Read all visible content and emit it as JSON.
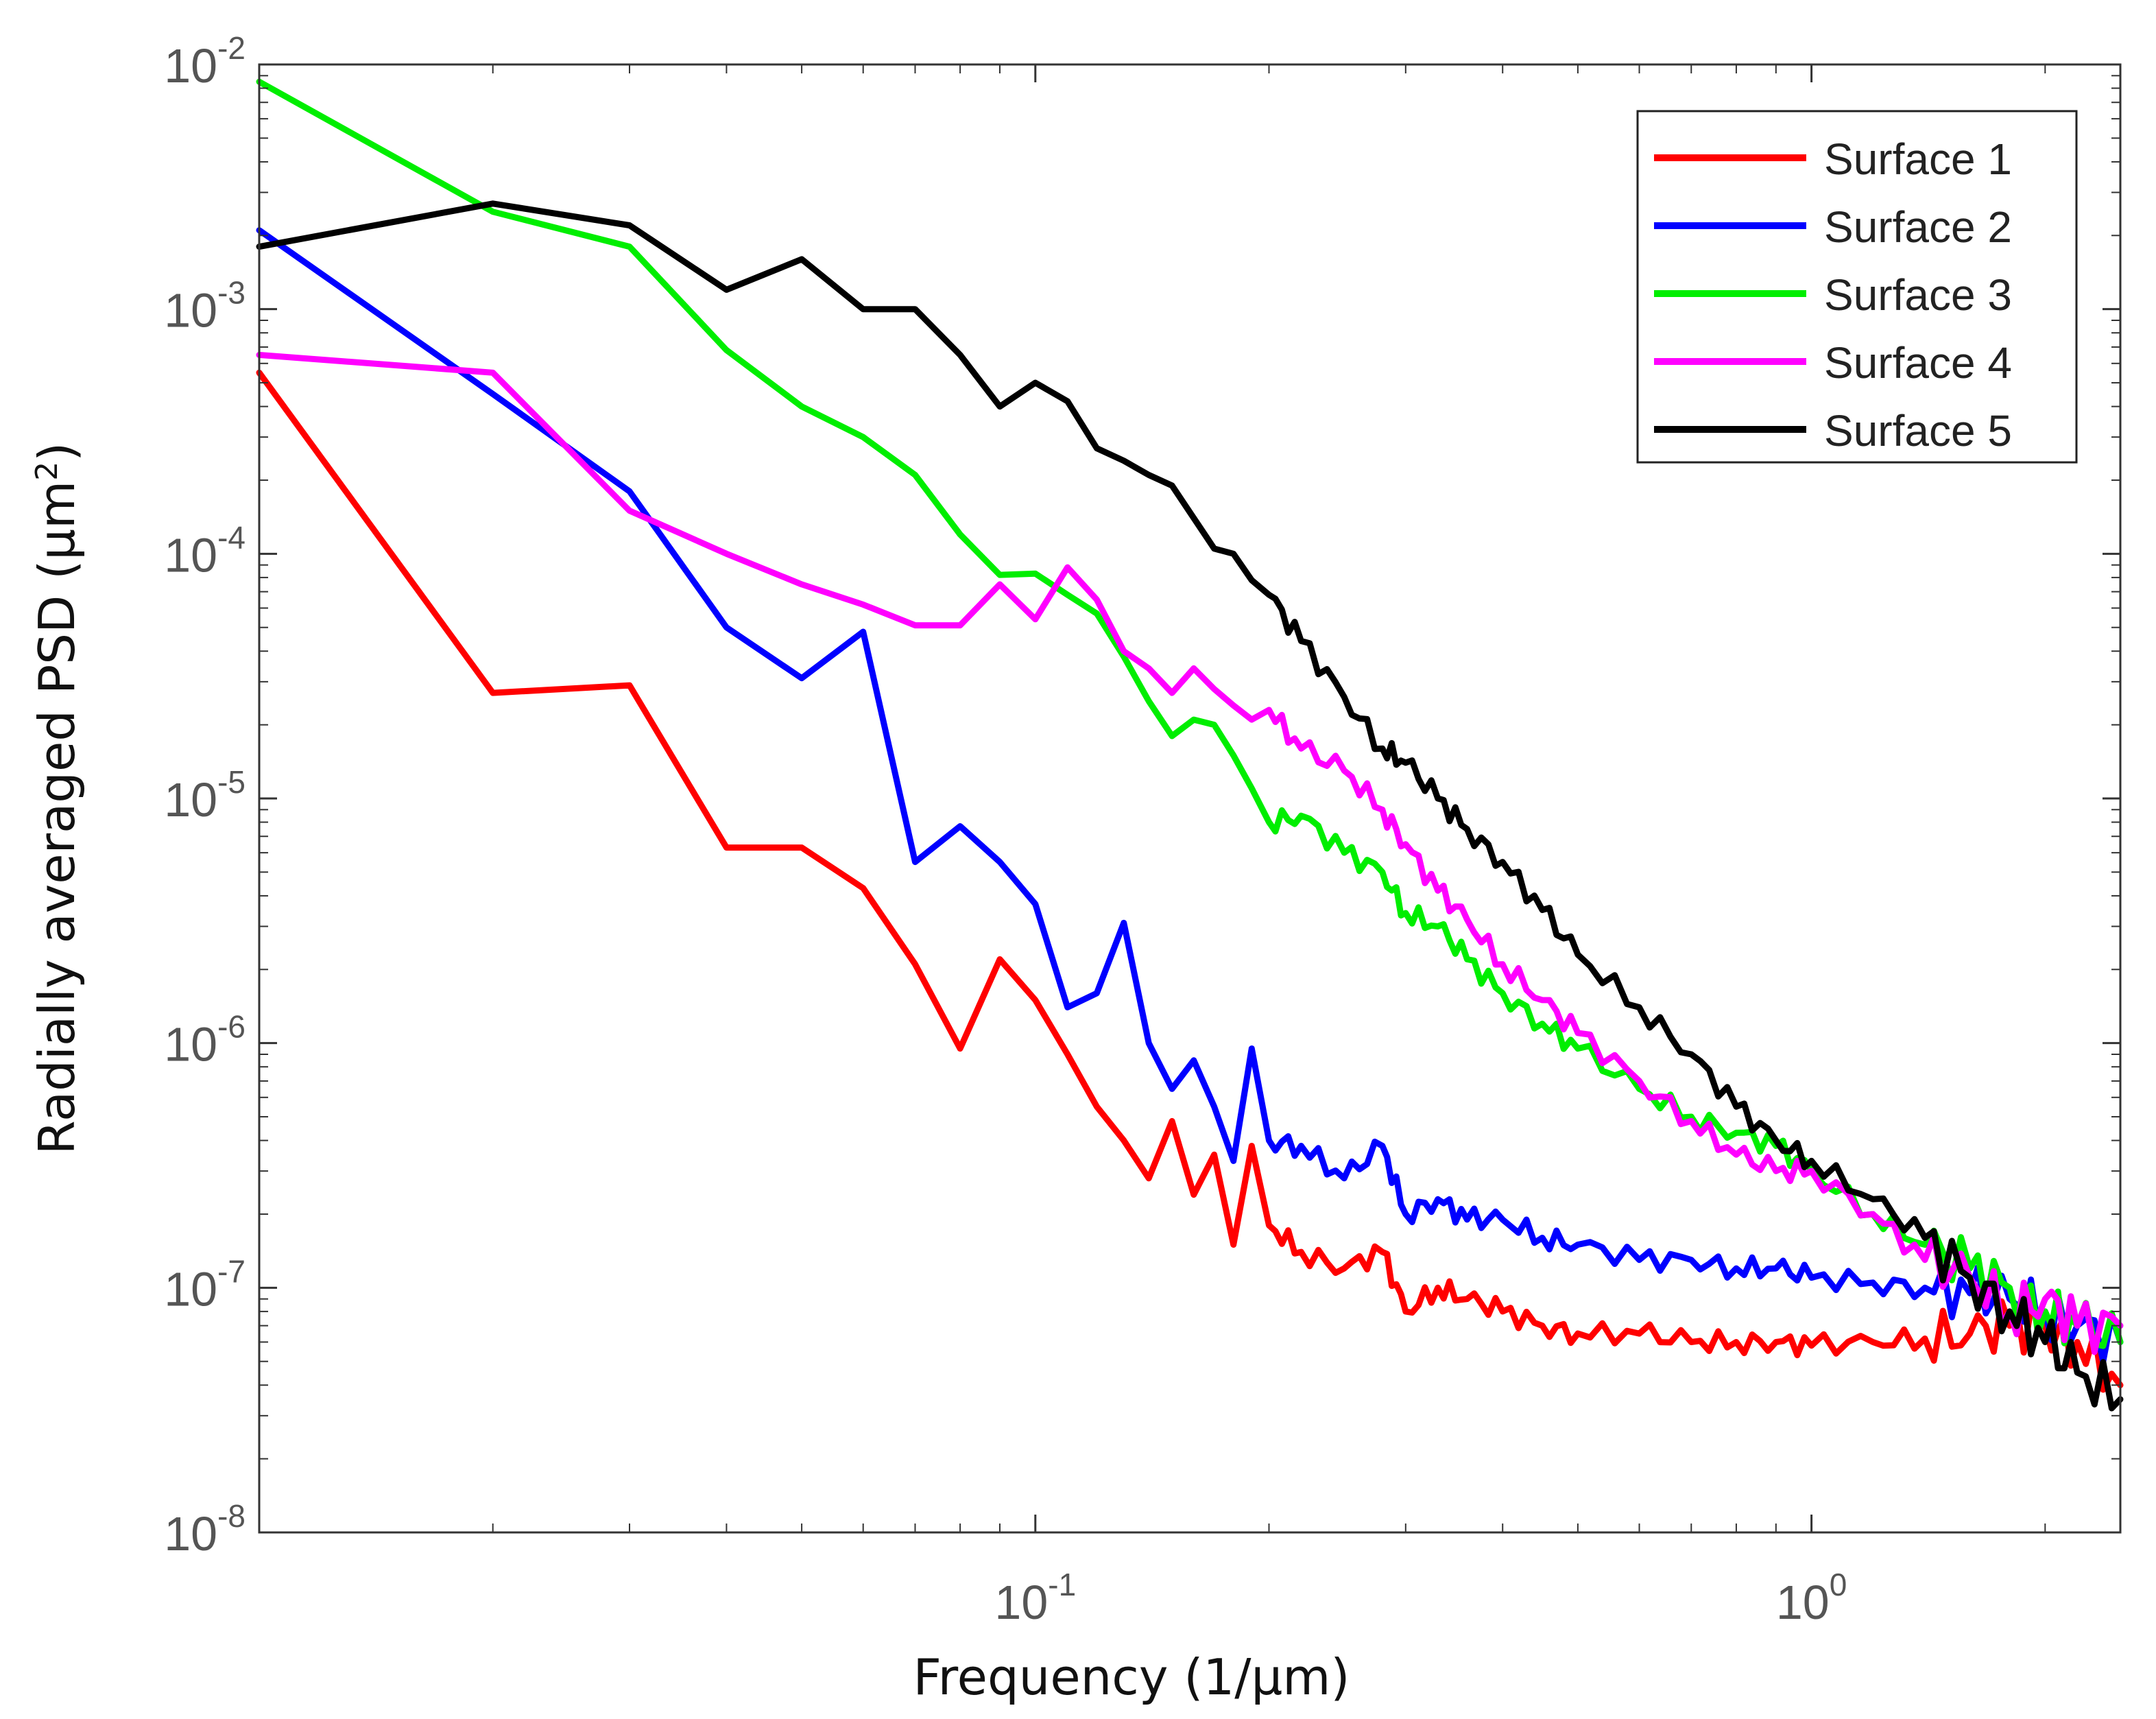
{
  "chart_data": {
    "type": "line",
    "title": "",
    "xlabel": "Frequency (1/μm)",
    "ylabel_main": "Radially averaged PSD (μm",
    "ylabel_sup": "2",
    "ylabel_close": ")",
    "xscale": "log",
    "yscale": "log",
    "xlim": [
      0.01,
      2.5
    ],
    "ylim": [
      1e-08,
      0.01
    ],
    "legend_position": "top-right",
    "x_ticks": [
      {
        "value": 0.1,
        "base": "10",
        "exp": "-1"
      },
      {
        "value": 1,
        "base": "10",
        "exp": "0"
      }
    ],
    "y_ticks": [
      {
        "value": 1e-08,
        "base": "10",
        "exp": "-8"
      },
      {
        "value": 1e-07,
        "base": "10",
        "exp": "-7"
      },
      {
        "value": 1e-06,
        "base": "10",
        "exp": "-6"
      },
      {
        "value": 1e-05,
        "base": "10",
        "exp": "-5"
      },
      {
        "value": 0.0001,
        "base": "10",
        "exp": "-4"
      },
      {
        "value": 0.001,
        "base": "10",
        "exp": "-3"
      },
      {
        "value": 0.01,
        "base": "10",
        "exp": "-2"
      }
    ],
    "series": [
      {
        "name": "Surface 1",
        "color": "#ff0000",
        "x": [
          0.01,
          0.02,
          0.03,
          0.04,
          0.05,
          0.06,
          0.07,
          0.08,
          0.09,
          0.1,
          0.11,
          0.12,
          0.13,
          0.14,
          0.15,
          0.16,
          0.17,
          0.18,
          0.19,
          0.2,
          0.22,
          0.25,
          0.28,
          0.3,
          0.33,
          0.36,
          0.4,
          0.45,
          0.5,
          0.6,
          0.7,
          0.8,
          0.9,
          1.0,
          1.2,
          1.4,
          1.6,
          1.8,
          2.0,
          2.2,
          2.5
        ],
        "y": [
          0.00055,
          2.7e-05,
          2.9e-05,
          6.3e-06,
          6.3e-06,
          4.3e-06,
          2.1e-06,
          9.5e-07,
          2.2e-06,
          1.5e-06,
          9e-07,
          5.5e-07,
          4e-07,
          2.8e-07,
          4.8e-07,
          2.4e-07,
          3.5e-07,
          1.5e-07,
          3.8e-07,
          1.8e-07,
          1.4e-07,
          1.2e-07,
          1.4e-07,
          8e-08,
          1e-07,
          9e-08,
          8e-08,
          7e-08,
          6.5e-08,
          6.5e-08,
          6e-08,
          6e-08,
          6e-08,
          5.8e-08,
          6e-08,
          6.2e-08,
          6.5e-08,
          7e-08,
          7e-08,
          6e-08,
          4e-08
        ]
      },
      {
        "name": "Surface 2",
        "color": "#0000ff",
        "x": [
          0.01,
          0.02,
          0.03,
          0.04,
          0.05,
          0.06,
          0.07,
          0.08,
          0.09,
          0.1,
          0.11,
          0.12,
          0.13,
          0.14,
          0.15,
          0.16,
          0.17,
          0.18,
          0.19,
          0.2,
          0.22,
          0.25,
          0.28,
          0.3,
          0.33,
          0.36,
          0.4,
          0.45,
          0.5,
          0.6,
          0.7,
          0.8,
          0.9,
          1.0,
          1.2,
          1.4,
          1.6,
          1.8,
          2.0,
          2.2,
          2.5
        ],
        "y": [
          0.0021,
          0.00045,
          0.00018,
          5e-05,
          3.1e-05,
          4.8e-05,
          5.5e-06,
          7.7e-06,
          5.5e-06,
          3.7e-06,
          1.4e-06,
          1.6e-06,
          3.1e-06,
          1e-06,
          6.5e-07,
          8.5e-07,
          5.5e-07,
          3.3e-07,
          9.5e-07,
          4e-07,
          3.8e-07,
          2.8e-07,
          3.8e-07,
          2e-07,
          2.3e-07,
          1.9e-07,
          1.9e-07,
          1.6e-07,
          1.5e-07,
          1.3e-07,
          1.3e-07,
          1.2e-07,
          1.2e-07,
          1.1e-07,
          1.05e-07,
          1e-07,
          9.5e-08,
          9e-08,
          8e-08,
          7e-08,
          6e-08
        ]
      },
      {
        "name": "Surface 3",
        "color": "#00ee00",
        "x": [
          0.01,
          0.02,
          0.03,
          0.04,
          0.05,
          0.06,
          0.07,
          0.08,
          0.09,
          0.1,
          0.11,
          0.12,
          0.13,
          0.14,
          0.15,
          0.16,
          0.17,
          0.18,
          0.19,
          0.2,
          0.22,
          0.25,
          0.28,
          0.3,
          0.33,
          0.36,
          0.4,
          0.45,
          0.5,
          0.6,
          0.7,
          0.8,
          0.9,
          1.0,
          1.2,
          1.4,
          1.6,
          1.8,
          2.0,
          2.2,
          2.5
        ],
        "y": [
          0.0085,
          0.0025,
          0.0018,
          0.00068,
          0.0004,
          0.0003,
          0.00021,
          0.00012,
          8.2e-05,
          8.3e-05,
          6.8e-05,
          5.7e-05,
          3.8e-05,
          2.5e-05,
          1.8e-05,
          2.1e-05,
          2e-05,
          1.5e-05,
          1.1e-05,
          8e-06,
          8.5e-06,
          6e-06,
          5e-06,
          3.4e-06,
          3e-06,
          2.2e-06,
          1.6e-06,
          1.2e-06,
          9.5e-07,
          6.5e-07,
          5e-07,
          4.3e-07,
          3.8e-07,
          3e-07,
          2e-07,
          1.5e-07,
          1.2e-07,
          1e-07,
          8e-08,
          7e-08,
          6e-08
        ]
      },
      {
        "name": "Surface 4",
        "color": "#ff00ff",
        "x": [
          0.01,
          0.02,
          0.03,
          0.04,
          0.05,
          0.06,
          0.07,
          0.08,
          0.09,
          0.1,
          0.11,
          0.12,
          0.13,
          0.14,
          0.15,
          0.16,
          0.17,
          0.18,
          0.19,
          0.2,
          0.22,
          0.25,
          0.28,
          0.3,
          0.33,
          0.36,
          0.4,
          0.45,
          0.5,
          0.6,
          0.7,
          0.8,
          0.9,
          1.0,
          1.2,
          1.4,
          1.6,
          1.8,
          2.0,
          2.2,
          2.5
        ],
        "y": [
          0.00065,
          0.00055,
          0.00015,
          0.0001,
          7.5e-05,
          6.2e-05,
          5.1e-05,
          5.1e-05,
          7.5e-05,
          5.4e-05,
          8.8e-05,
          6.5e-05,
          4e-05,
          3.4e-05,
          2.7e-05,
          3.4e-05,
          2.8e-05,
          2.4e-05,
          2.1e-05,
          2.3e-05,
          1.6e-05,
          1.3e-05,
          9e-06,
          6.5e-06,
          4.2e-06,
          3.2e-06,
          2.1e-06,
          1.5e-06,
          1.1e-06,
          7e-07,
          4.8e-07,
          3.5e-07,
          3e-07,
          3e-07,
          2e-07,
          1.3e-07,
          1.1e-07,
          8e-08,
          9e-08,
          7e-08,
          7e-08
        ]
      },
      {
        "name": "Surface 5",
        "color": "#000000",
        "x": [
          0.01,
          0.02,
          0.03,
          0.04,
          0.05,
          0.06,
          0.07,
          0.08,
          0.09,
          0.1,
          0.11,
          0.12,
          0.13,
          0.14,
          0.15,
          0.16,
          0.17,
          0.18,
          0.19,
          0.2,
          0.22,
          0.25,
          0.28,
          0.3,
          0.33,
          0.36,
          0.4,
          0.45,
          0.5,
          0.6,
          0.7,
          0.8,
          0.9,
          1.0,
          1.2,
          1.4,
          1.6,
          1.8,
          2.0,
          2.2,
          2.5
        ],
        "y": [
          0.0018,
          0.0027,
          0.0022,
          0.0012,
          0.0016,
          0.001,
          0.001,
          0.00065,
          0.0004,
          0.0005,
          0.00042,
          0.00027,
          0.00024,
          0.00021,
          0.00019,
          0.00014,
          0.000105,
          0.0001,
          7.8e-05,
          6.8e-05,
          4.4e-05,
          2.6e-05,
          1.6e-05,
          1.4e-05,
          1e-05,
          7.5e-06,
          5.5e-06,
          3.5e-06,
          2.3e-06,
          1.4e-06,
          9e-07,
          5.5e-07,
          4e-07,
          3.3e-07,
          2.3e-07,
          1.6e-07,
          1.1e-07,
          8e-08,
          6e-08,
          4.5e-08,
          3.5e-08
        ]
      }
    ]
  }
}
